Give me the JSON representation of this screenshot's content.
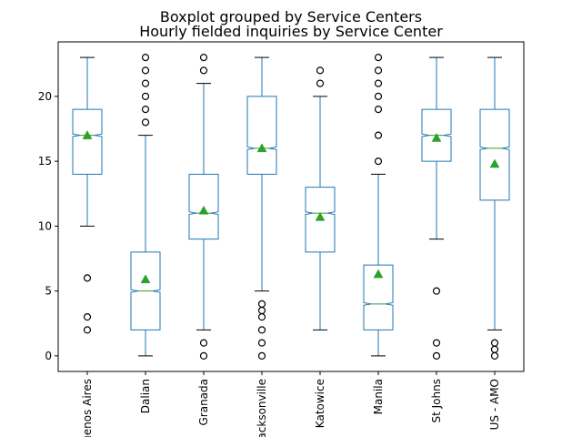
{
  "chart_data": {
    "type": "boxplot",
    "suptitle": "Boxplot grouped by Service Centers",
    "title": "Hourly fielded inquiries by Service Center",
    "xlabel": "",
    "ylabel": "",
    "ylim": [
      -1.2,
      24.2
    ],
    "yticks": [
      0,
      5,
      10,
      15,
      20
    ],
    "grid": false,
    "notched": true,
    "show_means": true,
    "colors": {
      "box": "#1f77b4",
      "median": "#2ca02c",
      "mean": "#2ca02c",
      "whisker_cap": "#000000",
      "flier": "#000000"
    },
    "categories": [
      "Buenos Aires",
      "Dalian",
      "Granada",
      "Jacksonville",
      "Katowice",
      "Manila",
      "St Johns",
      "US - AMO"
    ],
    "boxes": [
      {
        "q1": 14,
        "median": 17,
        "q3": 19,
        "whisker_low": 10,
        "whisker_high": 23,
        "mean": 17.0,
        "notch": [
          16.9,
          17.1
        ],
        "fliers": [
          6,
          3,
          2
        ]
      },
      {
        "q1": 2,
        "median": 5,
        "q3": 8,
        "whisker_low": 0,
        "whisker_high": 17,
        "mean": 5.9,
        "notch": [
          4.9,
          5.1
        ],
        "fliers": [
          18,
          19,
          20,
          21,
          22,
          23
        ]
      },
      {
        "q1": 9,
        "median": 11,
        "q3": 14,
        "whisker_low": 2,
        "whisker_high": 21,
        "mean": 11.2,
        "notch": [
          10.9,
          11.1
        ],
        "fliers": [
          22,
          23,
          1,
          0
        ]
      },
      {
        "q1": 14,
        "median": 16,
        "q3": 20,
        "whisker_low": 5,
        "whisker_high": 23,
        "mean": 16.0,
        "notch": [
          15.9,
          16.1
        ],
        "fliers": [
          4,
          3.5,
          3,
          2,
          1,
          0
        ]
      },
      {
        "q1": 8,
        "median": 11,
        "q3": 13,
        "whisker_low": 2,
        "whisker_high": 20,
        "mean": 10.7,
        "notch": [
          10.9,
          11.1
        ],
        "fliers": [
          21,
          22
        ]
      },
      {
        "q1": 2,
        "median": 4,
        "q3": 7,
        "whisker_low": 0,
        "whisker_high": 14,
        "mean": 6.3,
        "notch": [
          3.9,
          4.1
        ],
        "fliers": [
          15,
          17,
          19,
          20,
          21,
          22,
          23
        ]
      },
      {
        "q1": 15,
        "median": 17,
        "q3": 19,
        "whisker_low": 9,
        "whisker_high": 23,
        "mean": 16.8,
        "notch": [
          16.9,
          17.1
        ],
        "fliers": [
          5,
          1,
          0
        ]
      },
      {
        "q1": 12,
        "median": 16,
        "q3": 19,
        "whisker_low": 2,
        "whisker_high": 23,
        "mean": 14.8,
        "notch": [
          15.9,
          16.1
        ],
        "fliers": [
          1,
          0.5,
          0
        ]
      }
    ]
  }
}
